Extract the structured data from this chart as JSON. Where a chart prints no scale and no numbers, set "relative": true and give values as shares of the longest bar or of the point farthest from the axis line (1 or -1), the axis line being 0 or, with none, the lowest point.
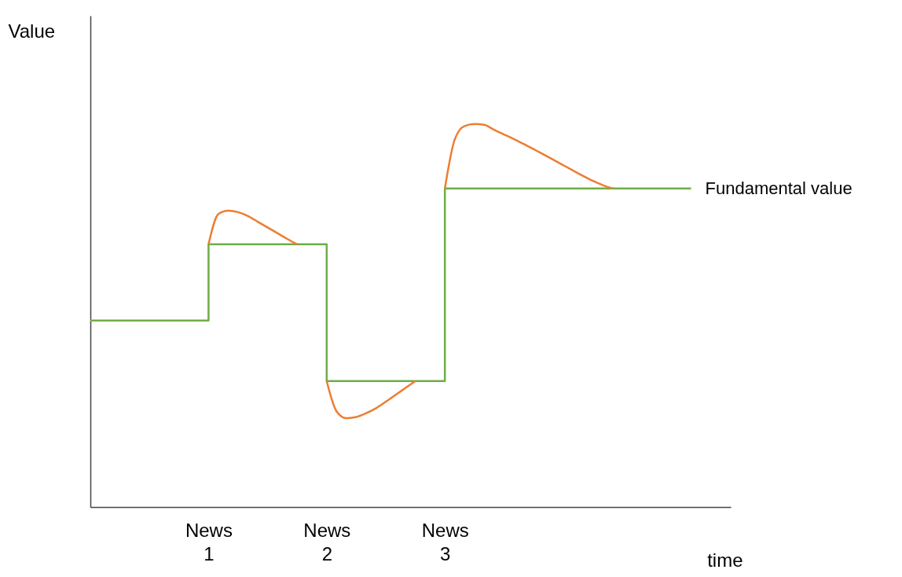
{
  "chart_data": {
    "type": "line",
    "relative": true,
    "xlabel": "time",
    "ylabel": "Value",
    "categories": [
      null,
      null,
      null,
      null,
      null,
      null,
      null,
      null,
      null,
      null,
      null,
      null,
      "News 1",
      null,
      null,
      null,
      null,
      null,
      null,
      null,
      null,
      null,
      null,
      null,
      "News 2",
      null,
      null,
      null,
      null,
      null,
      null,
      null,
      null,
      null,
      null,
      null,
      "News 3",
      null,
      null,
      null,
      null,
      null,
      null,
      null,
      null,
      null,
      null,
      null,
      null,
      null,
      null,
      null,
      null,
      null,
      null,
      null,
      null,
      null,
      null,
      null,
      null,
      null
    ],
    "series": [
      {
        "name": "Fundamental value",
        "type": "step",
        "color": "#70ad47",
        "values": [
          0.487,
          0.487,
          0.487,
          0.487,
          0.487,
          0.487,
          0.487,
          0.487,
          0.487,
          0.487,
          0.487,
          0.487,
          0.686,
          0.686,
          0.686,
          0.686,
          0.686,
          0.686,
          0.686,
          0.686,
          0.686,
          0.686,
          0.686,
          0.686,
          0.329,
          0.329,
          0.329,
          0.329,
          0.329,
          0.329,
          0.329,
          0.329,
          0.329,
          0.329,
          0.329,
          0.329,
          0.832,
          0.832,
          0.832,
          0.832,
          0.832,
          0.832,
          0.832,
          0.832,
          0.832,
          0.832,
          0.832,
          0.832,
          0.832,
          0.832,
          0.832,
          0.832,
          0.832,
          0.832,
          0.832,
          0.832,
          0.832,
          0.832,
          0.832,
          0.832,
          0.832,
          0.832
        ]
      },
      {
        "color": "#ed7d31",
        "values": [
          null,
          null,
          null,
          null,
          null,
          null,
          null,
          null,
          null,
          null,
          null,
          null,
          0.686,
          0.765,
          0.774,
          0.77,
          0.76,
          0.745,
          0.73,
          0.715,
          0.7,
          0.686,
          null,
          null,
          0.329,
          0.25,
          0.232,
          0.235,
          0.245,
          0.258,
          0.275,
          0.293,
          0.311,
          0.329,
          null,
          null,
          0.832,
          0.96,
          0.995,
          1.0,
          0.998,
          0.985,
          0.973,
          0.961,
          0.948,
          0.935,
          0.921,
          0.907,
          0.893,
          0.879,
          0.865,
          0.852,
          0.841,
          0.832,
          null,
          null,
          null,
          null,
          null,
          null,
          null,
          null
        ]
      }
    ]
  }
}
